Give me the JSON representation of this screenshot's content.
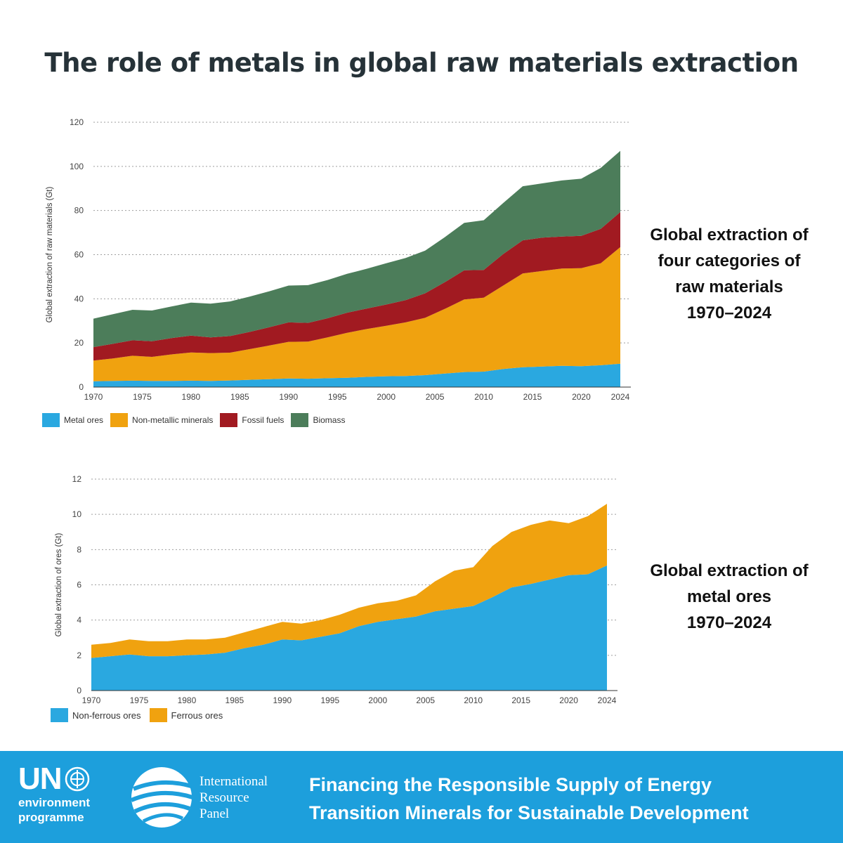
{
  "title": "The role of metals in global raw materials extraction",
  "caption_top": [
    "Global extraction of",
    "four categories of",
    "raw materials",
    "1970–2024"
  ],
  "caption_bottom": [
    "Global extraction of",
    "metal ores",
    "1970–2024"
  ],
  "footer": {
    "un_label": "UN",
    "env_line1": "environment",
    "env_line2": "programme",
    "irp_line1": "International",
    "irp_line2": "Resource",
    "irp_line3": "Panel",
    "title_line1": "Financing the Responsible Supply of Energy",
    "title_line2": "Transition Minerals for Sustainable Development",
    "background_color": "#1d9fdc"
  },
  "chart_data": [
    {
      "type": "area",
      "stacked": true,
      "ylabel": "Global extraction of raw materials (Gt)",
      "xlabel": "",
      "xlim": [
        1970,
        2024
      ],
      "ylim": [
        0,
        120
      ],
      "yticks": [
        0,
        20,
        40,
        60,
        80,
        100,
        120
      ],
      "xtick_labels": [
        "1970",
        "1975",
        "1980",
        "1985",
        "1990",
        "1995",
        "2000",
        "2005",
        "2010",
        "2015",
        "2020",
        "2024"
      ],
      "grid": true,
      "legend_position": "bottom-left",
      "x": [
        1970,
        1972,
        1974,
        1976,
        1978,
        1980,
        1982,
        1984,
        1986,
        1988,
        1990,
        1992,
        1994,
        1996,
        1998,
        2000,
        2002,
        2004,
        2006,
        2008,
        2010,
        2012,
        2014,
        2016,
        2018,
        2020,
        2022,
        2024
      ],
      "series": [
        {
          "name": "Metal ores",
          "color": "#2aa8e0",
          "values": [
            2.6,
            2.8,
            2.9,
            2.8,
            2.8,
            2.9,
            2.8,
            3.0,
            3.3,
            3.6,
            3.9,
            3.8,
            4.0,
            4.2,
            4.6,
            4.9,
            5.0,
            5.4,
            6.1,
            6.8,
            7.0,
            8.2,
            9.0,
            9.3,
            9.6,
            9.5,
            9.9,
            10.6
          ]
        },
        {
          "name": "Non-metallic minerals",
          "color": "#f0a20f",
          "values": [
            9.4,
            10.2,
            11.3,
            10.9,
            12.0,
            12.8,
            12.6,
            12.6,
            13.9,
            15.2,
            16.6,
            16.8,
            18.5,
            20.4,
            21.7,
            22.9,
            24.3,
            26.0,
            29.3,
            32.9,
            33.5,
            37.8,
            42.5,
            43.3,
            44.1,
            44.4,
            46.2,
            52.8
          ]
        },
        {
          "name": "Fossil fuels",
          "color": "#a11a21",
          "values": [
            6.1,
            6.6,
            7.0,
            7.1,
            7.4,
            7.6,
            7.1,
            7.5,
            7.8,
            8.3,
            8.8,
            8.5,
            8.7,
            9.1,
            9.3,
            9.6,
            10.1,
            11.1,
            12.1,
            13.2,
            12.6,
            14.3,
            15.0,
            15.1,
            14.5,
            14.6,
            15.6,
            15.9
          ]
        },
        {
          "name": "Biomass",
          "color": "#4c7d5a",
          "values": [
            12.9,
            13.4,
            13.8,
            13.9,
            14.3,
            15.0,
            15.3,
            15.7,
            16.0,
            16.3,
            16.7,
            17.1,
            17.3,
            17.6,
            18.0,
            18.7,
            19.1,
            19.3,
            20.4,
            21.5,
            22.5,
            23.1,
            24.5,
            24.6,
            25.4,
            25.9,
            27.6,
            27.7
          ]
        }
      ]
    },
    {
      "type": "area",
      "stacked": true,
      "ylabel": "Global extraction of ores (Gt)",
      "xlabel": "",
      "xlim": [
        1970,
        2024
      ],
      "ylim": [
        0,
        12
      ],
      "yticks": [
        0,
        2,
        4,
        6,
        8,
        10,
        12
      ],
      "xtick_labels": [
        "1970",
        "1975",
        "1980",
        "1985",
        "1990",
        "1995",
        "2000",
        "2005",
        "2010",
        "2015",
        "2020",
        "2024"
      ],
      "grid": true,
      "legend_position": "bottom-left",
      "x": [
        1970,
        1972,
        1974,
        1976,
        1978,
        1980,
        1982,
        1984,
        1986,
        1988,
        1990,
        1992,
        1994,
        1996,
        1998,
        2000,
        2002,
        2004,
        2006,
        2008,
        2010,
        2012,
        2014,
        2016,
        2018,
        2020,
        2022,
        2024
      ],
      "series": [
        {
          "name": "Non-ferrous ores",
          "color": "#2aa8e0",
          "values": [
            1.85,
            1.95,
            2.05,
            1.95,
            1.95,
            2.0,
            2.05,
            2.15,
            2.4,
            2.6,
            2.9,
            2.85,
            3.05,
            3.25,
            3.65,
            3.9,
            4.05,
            4.2,
            4.5,
            4.65,
            4.8,
            5.3,
            5.85,
            6.05,
            6.3,
            6.55,
            6.6,
            7.1
          ]
        },
        {
          "name": "Ferrous ores",
          "color": "#f0a20f",
          "values": [
            0.75,
            0.75,
            0.85,
            0.85,
            0.85,
            0.9,
            0.85,
            0.85,
            0.9,
            1.0,
            1.0,
            0.95,
            0.95,
            1.05,
            1.05,
            1.05,
            1.05,
            1.2,
            1.7,
            2.15,
            2.2,
            2.9,
            3.15,
            3.35,
            3.35,
            2.95,
            3.3,
            3.5
          ]
        }
      ]
    }
  ]
}
